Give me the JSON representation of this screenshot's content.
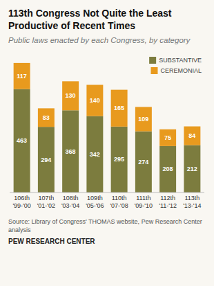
{
  "chart_data": {
    "type": "bar",
    "stacked": true,
    "title": "113th Congress Not Quite the Least Productive of Recent Times",
    "subtitle": "Public laws enacted by each Congress, by category",
    "categories": [
      "106th\n'99-'00",
      "107th\n'01-'02",
      "108th\n'03-'04",
      "109th\n'05-'06",
      "110th\n'07-'08",
      "111th\n'09-'10",
      "112th\n'11-'12",
      "113th\n'13-'14"
    ],
    "series": [
      {
        "name": "SUBSTANTIVE",
        "color": "#7c7c3e",
        "values": [
          463,
          294,
          368,
          342,
          295,
          274,
          208,
          212
        ]
      },
      {
        "name": "CEREMONIAL",
        "color": "#e89a1e",
        "values": [
          117,
          83,
          130,
          140,
          165,
          109,
          75,
          84
        ]
      }
    ],
    "ylim": [
      0,
      620
    ],
    "tick_labels": "x",
    "data_labels": true,
    "legend": "upper right",
    "annotations": [
      "Source: Library of Congress' THOMAS website, Pew Research Center analysis",
      "PEW RESEARCH CENTER"
    ]
  }
}
